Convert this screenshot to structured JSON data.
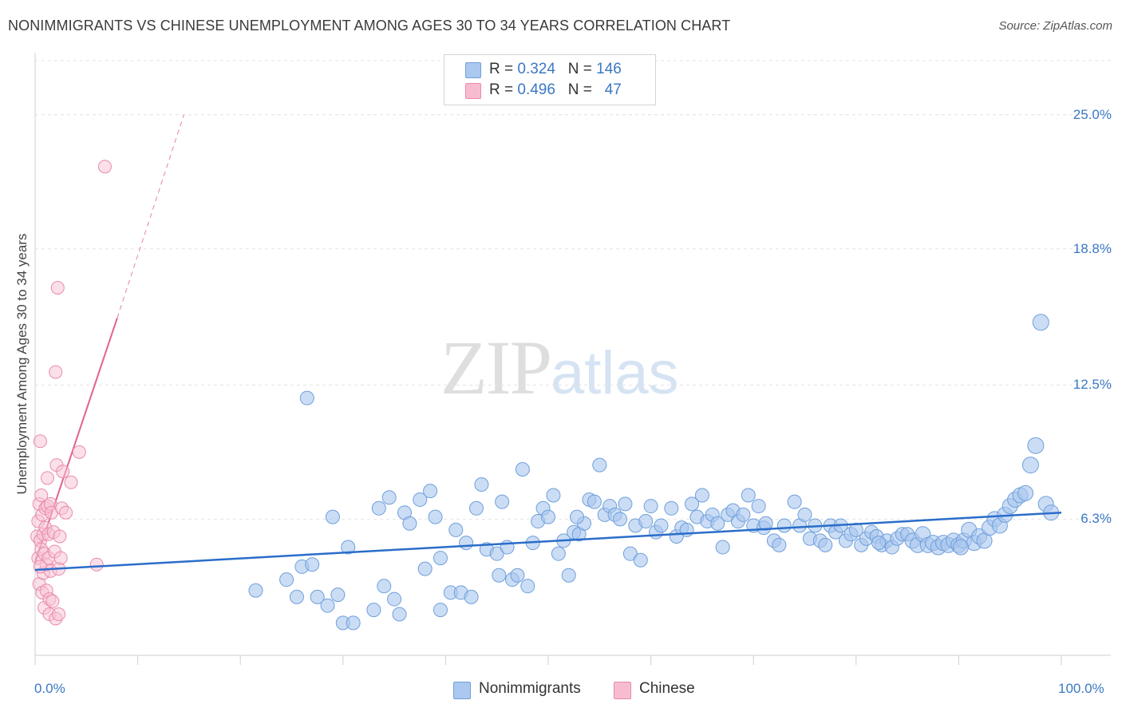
{
  "title": "NONIMMIGRANTS VS CHINESE UNEMPLOYMENT AMONG AGES 30 TO 34 YEARS CORRELATION CHART",
  "source": "Source: ZipAtlas.com",
  "watermark": {
    "zip": "ZIP",
    "atlas": "atlas"
  },
  "legend": {
    "rows": [
      {
        "r_label": "R =",
        "r_value": "0.324",
        "n_label": "N =",
        "n_value": "146",
        "color": "#aac8f0"
      },
      {
        "r_label": "R =",
        "r_value": "0.496",
        "n_label": "N =",
        "n_value": "47",
        "color": "#f8bcd0"
      }
    ]
  },
  "bottom_legend": [
    {
      "label": "Nonimmigrants",
      "color": "#aac8f0"
    },
    {
      "label": "Chinese",
      "color": "#f8bcd0"
    }
  ],
  "colors": {
    "blue_fill": "#a9c7ef",
    "blue_stroke": "#6f9fdb",
    "blue_line": "#2a6dc9",
    "pink_fill": "#f7c1d3",
    "pink_stroke": "#e98aab",
    "pink_line": "#e2628e",
    "tick_label": "#3b78c4",
    "grid": "#e4e4e4"
  },
  "chart_data": {
    "type": "scatter",
    "title": "NONIMMIGRANTS VS CHINESE UNEMPLOYMENT AMONG AGES 30 TO 34 YEARS CORRELATION CHART",
    "xlabel": "",
    "ylabel": "Unemployment Among Ages 30 to 34 years",
    "xlim": [
      0,
      100
    ],
    "ylim": [
      0,
      27.5
    ],
    "x_ticks": [
      "0.0%",
      "100.0%"
    ],
    "y_ticks": [
      {
        "value": 6.3,
        "label": "6.3%"
      },
      {
        "value": 12.5,
        "label": "12.5%"
      },
      {
        "value": 18.8,
        "label": "18.8%"
      },
      {
        "value": 25.0,
        "label": "25.0%"
      }
    ],
    "grid": true,
    "legend_position": "top-center",
    "series": [
      {
        "name": "Nonimmigrants",
        "trend": {
          "x": [
            0,
            100
          ],
          "y": [
            3.95,
            6.6
          ]
        },
        "points": [
          [
            21.5,
            3.0
          ],
          [
            24.5,
            3.5
          ],
          [
            25.5,
            2.7
          ],
          [
            26,
            4.1
          ],
          [
            26.5,
            11.9
          ],
          [
            27,
            4.2
          ],
          [
            27.5,
            2.7
          ],
          [
            28.5,
            2.3
          ],
          [
            29,
            6.4
          ],
          [
            29.5,
            2.8
          ],
          [
            30,
            1.5
          ],
          [
            30.5,
            5.0
          ],
          [
            31,
            1.5
          ],
          [
            33,
            2.1
          ],
          [
            33.5,
            6.8
          ],
          [
            34,
            3.2
          ],
          [
            34.5,
            7.3
          ],
          [
            35,
            2.6
          ],
          [
            35.5,
            1.9
          ],
          [
            36,
            6.6
          ],
          [
            36.5,
            6.1
          ],
          [
            37.5,
            7.2
          ],
          [
            38,
            4.0
          ],
          [
            38.5,
            7.6
          ],
          [
            39,
            6.4
          ],
          [
            39.5,
            4.5
          ],
          [
            39.5,
            2.1
          ],
          [
            40.5,
            2.9
          ],
          [
            41,
            5.8
          ],
          [
            41.5,
            2.9
          ],
          [
            42,
            5.2
          ],
          [
            42.5,
            2.7
          ],
          [
            43,
            6.8
          ],
          [
            43.5,
            7.9
          ],
          [
            44,
            4.9
          ],
          [
            45,
            4.7
          ],
          [
            45.5,
            7.1
          ],
          [
            46,
            5.0
          ],
          [
            46.5,
            3.5
          ],
          [
            47,
            3.7
          ],
          [
            47.5,
            8.6
          ],
          [
            48,
            3.2
          ],
          [
            48.5,
            5.2
          ],
          [
            49,
            6.2
          ],
          [
            49.5,
            6.8
          ],
          [
            50,
            6.4
          ],
          [
            50.5,
            7.4
          ],
          [
            51,
            4.7
          ],
          [
            51.5,
            5.3
          ],
          [
            52,
            3.7
          ],
          [
            52.5,
            5.7
          ],
          [
            53,
            5.6
          ],
          [
            53.5,
            6.1
          ],
          [
            54,
            7.2
          ],
          [
            54.5,
            7.1
          ],
          [
            55,
            8.8
          ],
          [
            55.5,
            6.5
          ],
          [
            56,
            6.9
          ],
          [
            56.5,
            6.5
          ],
          [
            57,
            6.3
          ],
          [
            57.5,
            7.0
          ],
          [
            58,
            4.7
          ],
          [
            58.5,
            6.0
          ],
          [
            59,
            4.4
          ],
          [
            59.5,
            6.2
          ],
          [
            60,
            6.9
          ],
          [
            60.5,
            5.7
          ],
          [
            61,
            6.0
          ],
          [
            62,
            6.8
          ],
          [
            62.5,
            5.5
          ],
          [
            63,
            5.9
          ],
          [
            64,
            7.0
          ],
          [
            64.5,
            6.4
          ],
          [
            65,
            7.4
          ],
          [
            65.5,
            6.2
          ],
          [
            66,
            6.5
          ],
          [
            66.5,
            6.1
          ],
          [
            67,
            5.0
          ],
          [
            67.5,
            6.5
          ],
          [
            68,
            6.7
          ],
          [
            68.5,
            6.2
          ],
          [
            69,
            6.5
          ],
          [
            69.5,
            7.4
          ],
          [
            70,
            6.0
          ],
          [
            70.5,
            6.9
          ],
          [
            71,
            5.9
          ],
          [
            72,
            5.3
          ],
          [
            72.5,
            5.1
          ],
          [
            73,
            6.0
          ],
          [
            74,
            7.1
          ],
          [
            74.5,
            6.0
          ],
          [
            75,
            6.5
          ],
          [
            75.5,
            5.4
          ],
          [
            76,
            6.0
          ],
          [
            76.5,
            5.3
          ],
          [
            77,
            5.1
          ],
          [
            77.5,
            6.0
          ],
          [
            78,
            5.7
          ],
          [
            78.5,
            6.0
          ],
          [
            79,
            5.3
          ],
          [
            79.5,
            5.6
          ],
          [
            80,
            5.8
          ],
          [
            80.5,
            5.1
          ],
          [
            81,
            5.4
          ],
          [
            81.5,
            5.7
          ],
          [
            82,
            5.5
          ],
          [
            82.5,
            5.1
          ],
          [
            83,
            5.3
          ],
          [
            83.5,
            5.0
          ],
          [
            84,
            5.4
          ],
          [
            84.5,
            5.6
          ],
          [
            85,
            5.6
          ],
          [
            85.5,
            5.3
          ],
          [
            86,
            5.1
          ],
          [
            86.5,
            5.6
          ],
          [
            87,
            5.1
          ],
          [
            87.5,
            5.2
          ],
          [
            88,
            5.0
          ],
          [
            88.5,
            5.2
          ],
          [
            89,
            5.1
          ],
          [
            89.5,
            5.3
          ],
          [
            90,
            5.1
          ],
          [
            90.5,
            5.3
          ],
          [
            91,
            5.8
          ],
          [
            91.5,
            5.2
          ],
          [
            92,
            5.5
          ],
          [
            92.5,
            5.3
          ],
          [
            93,
            5.9
          ],
          [
            93.5,
            6.3
          ],
          [
            94,
            6.0
          ],
          [
            94.5,
            6.5
          ],
          [
            95,
            6.9
          ],
          [
            95.5,
            7.2
          ],
          [
            96,
            7.4
          ],
          [
            96.5,
            7.5
          ],
          [
            97,
            8.8
          ],
          [
            97.5,
            9.7
          ],
          [
            98,
            15.4
          ],
          [
            98.5,
            7.0
          ],
          [
            99,
            6.6
          ],
          [
            45.2,
            3.7
          ],
          [
            52.8,
            6.4
          ],
          [
            63.5,
            5.8
          ],
          [
            71.2,
            6.1
          ],
          [
            82.2,
            5.2
          ],
          [
            90.2,
            5.0
          ]
        ]
      },
      {
        "name": "Chinese",
        "trend": {
          "x": [
            0,
            8.0
          ],
          "y": [
            4.3,
            15.6
          ],
          "extended": {
            "x": [
              8.0,
              14.5
            ],
            "y": [
              15.6,
              25.0
            ]
          }
        },
        "points": [
          [
            0.2,
            5.5
          ],
          [
            0.3,
            4.5
          ],
          [
            0.3,
            6.2
          ],
          [
            0.4,
            7.0
          ],
          [
            0.4,
            3.3
          ],
          [
            0.5,
            9.9
          ],
          [
            0.5,
            5.3
          ],
          [
            0.6,
            7.4
          ],
          [
            0.6,
            4.9
          ],
          [
            0.7,
            2.9
          ],
          [
            0.7,
            6.5
          ],
          [
            0.8,
            5.6
          ],
          [
            0.8,
            3.8
          ],
          [
            0.9,
            4.7
          ],
          [
            0.9,
            2.2
          ],
          [
            1.0,
            6.8
          ],
          [
            1.0,
            5.9
          ],
          [
            1.1,
            4.2
          ],
          [
            1.1,
            3.0
          ],
          [
            1.2,
            8.2
          ],
          [
            1.2,
            6.9
          ],
          [
            1.3,
            5.6
          ],
          [
            1.3,
            4.5
          ],
          [
            1.4,
            2.6
          ],
          [
            1.4,
            1.9
          ],
          [
            1.5,
            7.0
          ],
          [
            1.5,
            3.9
          ],
          [
            1.6,
            6.6
          ],
          [
            1.7,
            2.5
          ],
          [
            1.8,
            5.7
          ],
          [
            1.9,
            4.8
          ],
          [
            2.0,
            1.7
          ],
          [
            2.0,
            13.1
          ],
          [
            2.1,
            8.8
          ],
          [
            2.2,
            17.0
          ],
          [
            2.3,
            4.0
          ],
          [
            2.3,
            1.9
          ],
          [
            2.4,
            5.5
          ],
          [
            2.5,
            4.5
          ],
          [
            2.6,
            6.8
          ],
          [
            2.7,
            8.5
          ],
          [
            3.0,
            6.6
          ],
          [
            3.5,
            8.0
          ],
          [
            4.3,
            9.4
          ],
          [
            6.0,
            4.2
          ],
          [
            6.8,
            22.6
          ],
          [
            0.5,
            4.1
          ]
        ]
      }
    ]
  }
}
